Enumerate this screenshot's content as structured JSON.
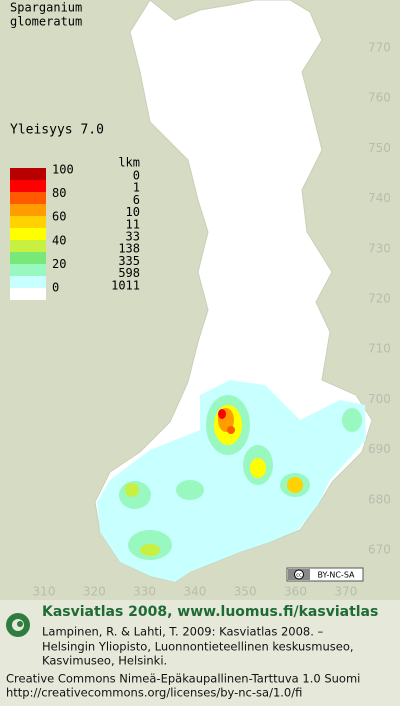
{
  "header": {
    "title_lines": [
      "Sparganium",
      "glomeratum"
    ],
    "frequency": "Yleisyys  7.0"
  },
  "legend": {
    "scale_labels": [
      "100",
      "80",
      "60",
      "40",
      "20",
      "0"
    ],
    "count_header": "lkm",
    "counts": [
      "0",
      "1",
      "6",
      "10",
      "11",
      "33",
      "138",
      "335",
      "598",
      "1011"
    ],
    "colors": [
      "#b80000",
      "#ff0000",
      "#ff5a00",
      "#ff9c00",
      "#ffd200",
      "#ffff00",
      "#c8f040",
      "#78e878",
      "#98f8c0",
      "#c8ffff",
      "#ffffff"
    ]
  },
  "map": {
    "yticks": [
      770,
      760,
      750,
      740,
      730,
      720,
      710,
      700,
      690,
      680,
      670
    ],
    "xticks": [
      310,
      320,
      330,
      340,
      350,
      360,
      370
    ],
    "license_badge": "BY-NC-SA"
  },
  "footer": {
    "heading": "Kasviatlas 2008, www.luomus.fi/kasviatlas",
    "citation_lines": [
      "Lampinen, R. & Lahti, T. 2009: Kasviatlas 2008. –",
      "Helsingin Yliopisto, Luonnontieteellinen keskusmuseo,",
      "Kasvimuseo, Helsinki."
    ],
    "license_lines": [
      "Creative Commons Nimeä-Epäkaupallinen-Tarttuva 1.0 Suomi",
      "http://creativecommons.org/licenses/by-nc-sa/1.0/fi"
    ]
  }
}
